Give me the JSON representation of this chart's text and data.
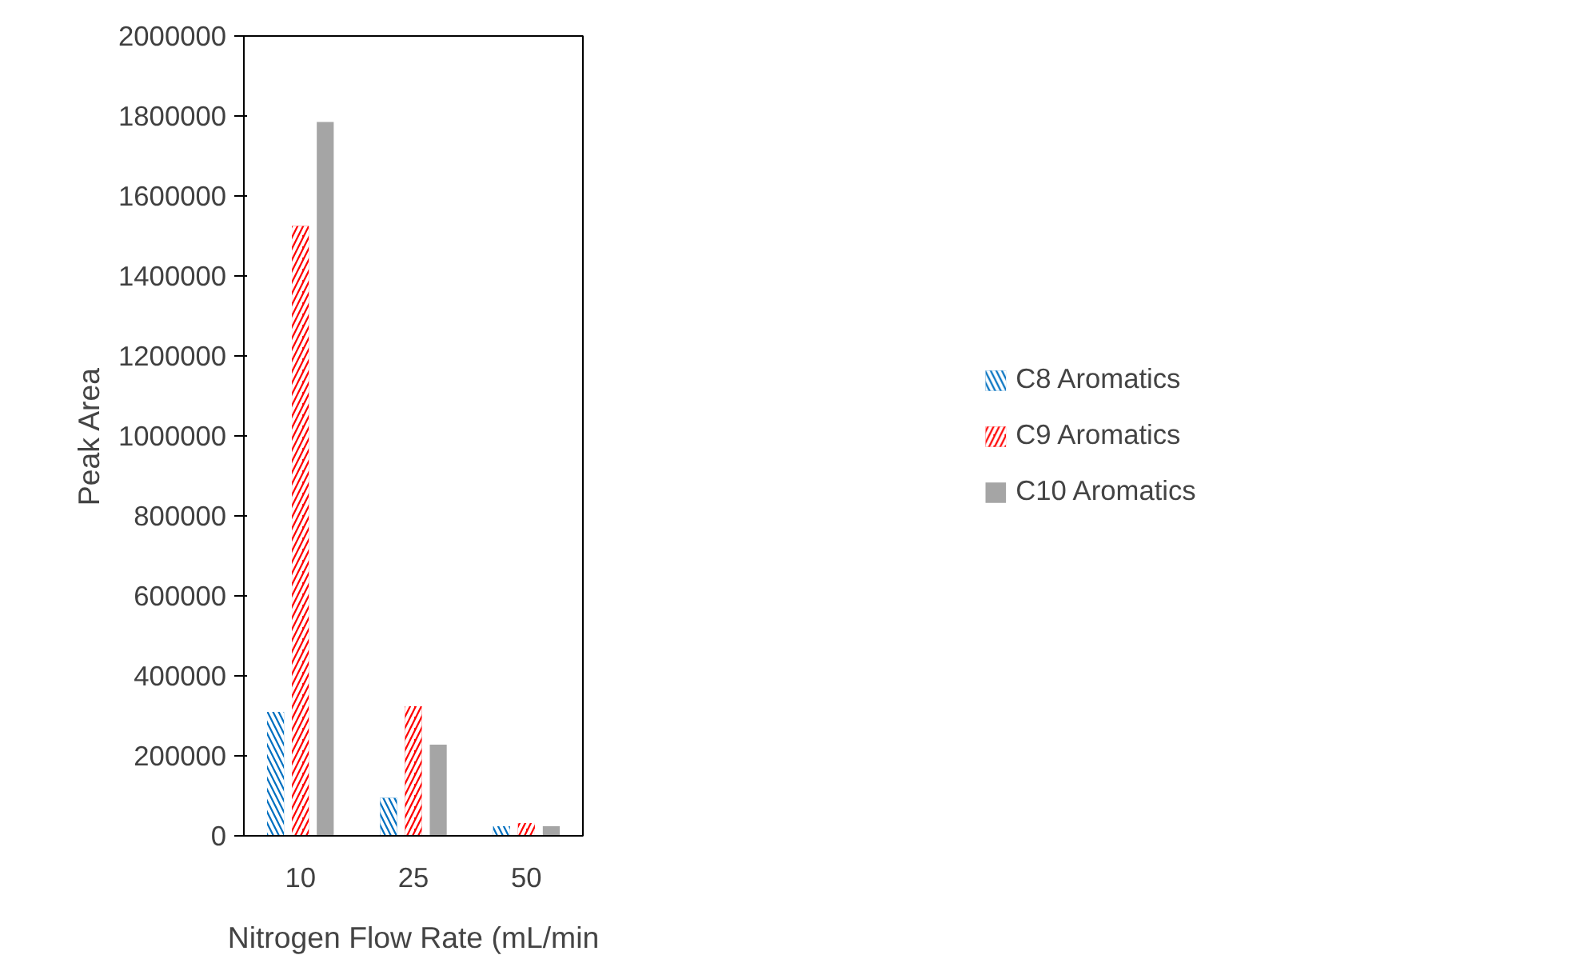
{
  "chart_data": {
    "type": "bar",
    "xlabel": "Nitrogen Flow Rate (mL/min",
    "ylabel": "Peak Area",
    "categories": [
      "10",
      "25",
      "50"
    ],
    "series": [
      {
        "name": "C8 Aromatics",
        "color": "#0070c0",
        "values": [
          310000,
          95000,
          24000
        ]
      },
      {
        "name": "C9 Aromatics",
        "color": "#ff0000",
        "values": [
          1525000,
          324000,
          32000
        ]
      },
      {
        "name": "C10 Aromatics",
        "color": "#a5a5a5",
        "values": [
          1785000,
          228000,
          24000
        ]
      }
    ],
    "ylim": [
      0,
      2000000
    ],
    "yticks": [
      0,
      200000,
      400000,
      600000,
      800000,
      1000000,
      1200000,
      1400000,
      1600000,
      1800000,
      2000000
    ],
    "grid": false,
    "legend": "right"
  }
}
